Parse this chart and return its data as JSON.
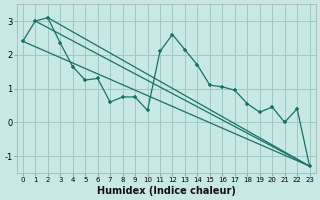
{
  "xlabel": "Humidex (Indice chaleur)",
  "xlim": [
    -0.5,
    23.5
  ],
  "ylim": [
    -1.5,
    3.5
  ],
  "yticks": [
    -1,
    0,
    1,
    2,
    3
  ],
  "xticks": [
    0,
    1,
    2,
    3,
    4,
    5,
    6,
    7,
    8,
    9,
    10,
    11,
    12,
    13,
    14,
    15,
    16,
    17,
    18,
    19,
    20,
    21,
    22,
    23
  ],
  "bg_color": "#c8e8e5",
  "grid_color": "#a0c8c4",
  "line_color": "#1a7068",
  "main_x": [
    0,
    1,
    2,
    3,
    4,
    5,
    6,
    7,
    8,
    9,
    10,
    11,
    12,
    13,
    14,
    15,
    16,
    17,
    18,
    19,
    20,
    21,
    22,
    23
  ],
  "main_y": [
    2.4,
    3.0,
    3.1,
    2.35,
    1.65,
    1.25,
    1.3,
    0.6,
    0.75,
    0.75,
    0.35,
    2.1,
    2.6,
    2.15,
    1.7,
    1.1,
    1.05,
    0.95,
    0.55,
    0.3,
    0.45,
    0.0,
    0.4,
    -1.3
  ],
  "diag_lines": [
    {
      "x": [
        0,
        23
      ],
      "y": [
        2.4,
        -1.3
      ]
    },
    {
      "x": [
        1,
        23
      ],
      "y": [
        3.0,
        -1.3
      ]
    },
    {
      "x": [
        2,
        23
      ],
      "y": [
        3.1,
        -1.3
      ]
    }
  ]
}
